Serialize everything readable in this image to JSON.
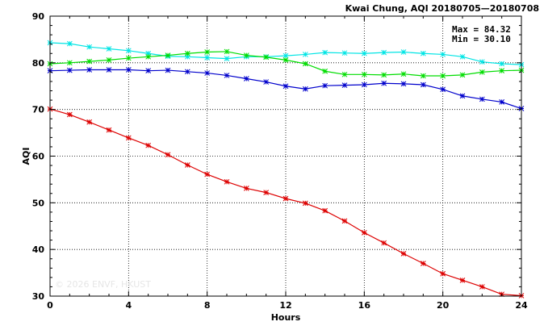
{
  "chart_data": {
    "type": "line",
    "title": "Kwai Chung, AQI 20180705—20180708",
    "stats": {
      "max": "Max = 84.32",
      "min": "Min = 30.10"
    },
    "xlabel": "Hours",
    "ylabel": "AQI",
    "xlim": [
      0,
      24
    ],
    "ylim": [
      30,
      90
    ],
    "xticks": [
      0,
      4,
      8,
      12,
      16,
      20,
      24
    ],
    "yticks": [
      30,
      40,
      50,
      60,
      70,
      80,
      90
    ],
    "grid": true,
    "watermark": "© 2026  ENVF, HKUST",
    "x": [
      0,
      1,
      2,
      3,
      4,
      5,
      6,
      7,
      8,
      9,
      10,
      11,
      12,
      13,
      14,
      15,
      16,
      17,
      18,
      19,
      20,
      21,
      22,
      23,
      24
    ],
    "series": [
      {
        "color": "#00e5e5",
        "values": [
          84.3,
          84.1,
          83.4,
          83.0,
          82.6,
          82.0,
          81.4,
          81.3,
          81.1,
          80.9,
          81.3,
          81.3,
          81.5,
          81.8,
          82.2,
          82.1,
          82.0,
          82.2,
          82.3,
          82.0,
          81.8,
          81.3,
          80.2,
          79.8,
          79.6
        ]
      },
      {
        "color": "#00dd00",
        "values": [
          79.8,
          80.0,
          80.3,
          80.6,
          81.0,
          81.3,
          81.6,
          82.0,
          82.3,
          82.4,
          81.6,
          81.2,
          80.6,
          79.8,
          78.2,
          77.5,
          77.5,
          77.4,
          77.6,
          77.2,
          77.2,
          77.4,
          78.0,
          78.3,
          78.4
        ]
      },
      {
        "color": "#0000cc",
        "values": [
          78.3,
          78.4,
          78.5,
          78.5,
          78.5,
          78.3,
          78.4,
          78.1,
          77.8,
          77.3,
          76.6,
          75.9,
          75.0,
          74.4,
          75.1,
          75.2,
          75.3,
          75.6,
          75.5,
          75.3,
          74.3,
          72.9,
          72.2,
          71.6,
          70.2
        ]
      },
      {
        "color": "#dd0000",
        "values": [
          70.1,
          68.9,
          67.3,
          65.6,
          63.9,
          62.3,
          60.3,
          58.1,
          56.1,
          54.5,
          53.1,
          52.2,
          50.9,
          49.9,
          48.3,
          46.1,
          43.6,
          41.4,
          39.1,
          37.0,
          34.8,
          33.4,
          32.0,
          30.4,
          30.1
        ]
      }
    ]
  }
}
